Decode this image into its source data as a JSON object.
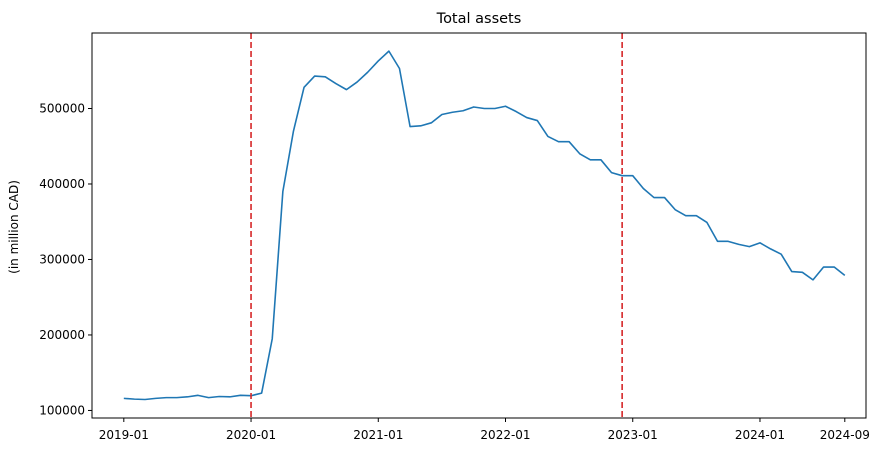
{
  "chart_data": {
    "type": "line",
    "title": "Total assets",
    "xlabel": "",
    "ylabel": "(in million CAD)",
    "line_color": "#1f77b4",
    "vline_color": "#d62728",
    "vlines": [
      "2020-01",
      "2022-12"
    ],
    "xlim": [
      "2018-10",
      "2024-11"
    ],
    "ylim": [
      90000,
      600000
    ],
    "x_ticks": [
      "2019-01",
      "2020-01",
      "2021-01",
      "2022-01",
      "2023-01",
      "2024-01",
      "2024-09"
    ],
    "y_ticks": [
      100000,
      200000,
      300000,
      400000,
      500000
    ],
    "grid": false,
    "series": [
      {
        "x": [
          "2019-01",
          "2019-02",
          "2019-03",
          "2019-04",
          "2019-05",
          "2019-06",
          "2019-07",
          "2019-08",
          "2019-09",
          "2019-10",
          "2019-11",
          "2019-12",
          "2020-01",
          "2020-02",
          "2020-03",
          "2020-04",
          "2020-05",
          "2020-06",
          "2020-07",
          "2020-08",
          "2020-09",
          "2020-10",
          "2020-11",
          "2020-12",
          "2021-01",
          "2021-02",
          "2021-03",
          "2021-04",
          "2021-05",
          "2021-06",
          "2021-07",
          "2021-08",
          "2021-09",
          "2021-10",
          "2021-11",
          "2021-12",
          "2022-01",
          "2022-02",
          "2022-03",
          "2022-04",
          "2022-05",
          "2022-06",
          "2022-07",
          "2022-08",
          "2022-09",
          "2022-10",
          "2022-11",
          "2022-12",
          "2023-01",
          "2023-02",
          "2023-03",
          "2023-04",
          "2023-05",
          "2023-06",
          "2023-07",
          "2023-08",
          "2023-09",
          "2023-10",
          "2023-11",
          "2023-12",
          "2024-01",
          "2024-02",
          "2024-03",
          "2024-04",
          "2024-05",
          "2024-06",
          "2024-07",
          "2024-08",
          "2024-09"
        ],
        "y": [
          116000,
          115000,
          114500,
          116000,
          117000,
          117000,
          118000,
          120000,
          117000,
          118500,
          118000,
          120000,
          119500,
          123000,
          195000,
          390000,
          470000,
          528000,
          543000,
          542000,
          533000,
          525000,
          535000,
          548000,
          563000,
          576000,
          553000,
          476000,
          477000,
          481000,
          492000,
          495000,
          497000,
          502000,
          500000,
          500000,
          503000,
          496000,
          488000,
          484000,
          463000,
          456000,
          456000,
          440000,
          432000,
          432000,
          415000,
          411000,
          411000,
          394000,
          382000,
          382000,
          366000,
          358000,
          358000,
          349000,
          324000,
          324000,
          320000,
          317000,
          322000,
          314000,
          307000,
          284000,
          283000,
          273000,
          290000,
          290000,
          279000
        ]
      }
    ]
  }
}
